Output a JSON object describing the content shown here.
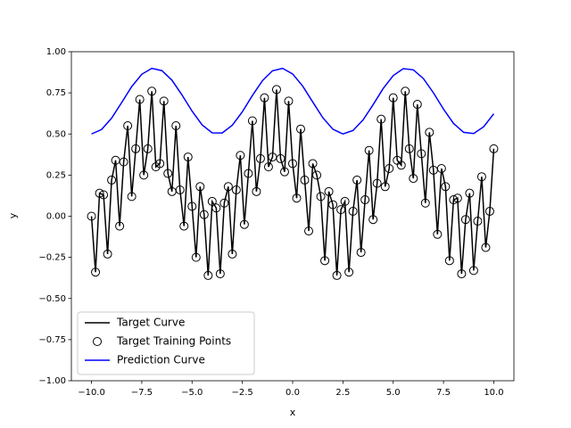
{
  "chart_data": {
    "type": "line",
    "xlabel": "x",
    "ylabel": "y",
    "xlim": [
      -11,
      11
    ],
    "ylim": [
      -1,
      1
    ],
    "xticks": [
      {
        "value": -10,
        "label": "−10.0"
      },
      {
        "value": -7.5,
        "label": "−7.5"
      },
      {
        "value": -5,
        "label": "−5.0"
      },
      {
        "value": -2.5,
        "label": "−2.5"
      },
      {
        "value": 0,
        "label": "0.0"
      },
      {
        "value": 2.5,
        "label": "2.5"
      },
      {
        "value": 5,
        "label": "5.0"
      },
      {
        "value": 7.5,
        "label": "7.5"
      },
      {
        "value": 10,
        "label": "10.0"
      }
    ],
    "yticks": [
      {
        "value": -1,
        "label": "−1.00"
      },
      {
        "value": -0.75,
        "label": "−0.75"
      },
      {
        "value": -0.5,
        "label": "−0.50"
      },
      {
        "value": -0.25,
        "label": "−0.25"
      },
      {
        "value": 0,
        "label": "0.00"
      },
      {
        "value": 0.25,
        "label": "0.25"
      },
      {
        "value": 0.5,
        "label": "0.50"
      },
      {
        "value": 0.75,
        "label": "0.75"
      },
      {
        "value": 1,
        "label": "1.00"
      }
    ],
    "legend": "lower left",
    "series": [
      {
        "name": "Target Curve",
        "color": "#000000",
        "style": "line",
        "x": [
          -10,
          -9.8,
          -9.6,
          -9.4,
          -9.2,
          -9,
          -8.8,
          -8.6,
          -8.4,
          -8.2,
          -8,
          -7.8,
          -7.6,
          -7.4,
          -7.2,
          -7,
          -6.8,
          -6.6,
          -6.4,
          -6.2,
          -6,
          -5.8,
          -5.6,
          -5.4,
          -5.2,
          -5,
          -4.8,
          -4.6,
          -4.4,
          -4.2,
          -4,
          -3.8,
          -3.6,
          -3.4,
          -3.2,
          -3,
          -2.8,
          -2.6,
          -2.4,
          -2.2,
          -2,
          -1.8,
          -1.6,
          -1.4,
          -1.2,
          -1,
          -0.8,
          -0.6,
          -0.4,
          -0.2,
          0,
          0.2,
          0.4,
          0.6,
          0.8,
          1,
          1.2,
          1.4,
          1.6,
          1.8,
          2,
          2.2,
          2.4,
          2.6,
          2.8,
          3,
          3.2,
          3.4,
          3.6,
          3.8,
          4,
          4.2,
          4.4,
          4.6,
          4.8,
          5,
          5.2,
          5.4,
          5.6,
          5.8,
          6,
          6.2,
          6.4,
          6.6,
          6.8,
          7,
          7.2,
          7.4,
          7.6,
          7.8,
          8,
          8.2,
          8.4,
          8.6,
          8.8,
          9,
          9.2,
          9.4,
          9.6,
          9.8,
          10
        ],
        "values": [
          0,
          -0.34,
          0.14,
          0.13,
          -0.23,
          0.22,
          0.34,
          -0.06,
          0.33,
          0.55,
          0.12,
          0.41,
          0.71,
          0.25,
          0.41,
          0.76,
          0.3,
          0.32,
          0.7,
          0.26,
          0.15,
          0.55,
          0.16,
          -0.06,
          0.36,
          0.06,
          -0.25,
          0.18,
          0.01,
          -0.36,
          0.09,
          0.05,
          -0.35,
          0.08,
          0.18,
          -0.23,
          0.16,
          0.37,
          -0.05,
          0.26,
          0.58,
          0.15,
          0.35,
          0.72,
          0.3,
          0.36,
          0.77,
          0.35,
          0.27,
          0.7,
          0.32,
          0.11,
          0.53,
          0.22,
          -0.09,
          0.32,
          0.25,
          0.12,
          -0.27,
          0.15,
          0.07,
          -0.36,
          0.04,
          0.09,
          -0.34,
          0.03,
          0.22,
          -0.22,
          0.1,
          0.4,
          -0.02,
          0.2,
          0.59,
          0.18,
          0.29,
          0.72,
          0.34,
          0.31,
          0.76,
          0.41,
          0.23,
          0.68,
          0.38,
          0.08,
          0.51,
          0.28,
          -0.11,
          0.29,
          0.18,
          -0.27,
          0.1,
          0.11,
          -0.35,
          -0.02,
          0.14,
          -0.33,
          -0.03,
          0.24,
          -0.19,
          0.03,
          0.41
        ]
      },
      {
        "name": "Target Training Points",
        "color": "#000000",
        "style": "marker",
        "x": [
          -10,
          -9.8,
          -9.6,
          -9.4,
          -9.2,
          -9,
          -8.8,
          -8.6,
          -8.4,
          -8.2,
          -8,
          -7.8,
          -7.6,
          -7.4,
          -7.2,
          -7,
          -6.8,
          -6.6,
          -6.4,
          -6.2,
          -6,
          -5.8,
          -5.6,
          -5.4,
          -5.2,
          -5,
          -4.8,
          -4.6,
          -4.4,
          -4.2,
          -4,
          -3.8,
          -3.6,
          -3.4,
          -3.2,
          -3,
          -2.8,
          -2.6,
          -2.4,
          -2.2,
          -2,
          -1.8,
          -1.6,
          -1.4,
          -1.2,
          -1,
          -0.8,
          -0.6,
          -0.4,
          -0.2,
          0,
          0.2,
          0.4,
          0.6,
          0.8,
          1,
          1.2,
          1.4,
          1.6,
          1.8,
          2,
          2.2,
          2.4,
          2.6,
          2.8,
          3,
          3.2,
          3.4,
          3.6,
          3.8,
          4,
          4.2,
          4.4,
          4.6,
          4.8,
          5,
          5.2,
          5.4,
          5.6,
          5.8,
          6,
          6.2,
          6.4,
          6.6,
          6.8,
          7,
          7.2,
          7.4,
          7.6,
          7.8,
          8,
          8.2,
          8.4,
          8.6,
          8.8,
          9,
          9.2,
          9.4,
          9.6,
          9.8,
          10
        ],
        "values": [
          0,
          -0.34,
          0.14,
          0.13,
          -0.23,
          0.22,
          0.34,
          -0.06,
          0.33,
          0.55,
          0.12,
          0.41,
          0.71,
          0.25,
          0.41,
          0.76,
          0.3,
          0.32,
          0.7,
          0.26,
          0.15,
          0.55,
          0.16,
          -0.06,
          0.36,
          0.06,
          -0.25,
          0.18,
          0.01,
          -0.36,
          0.09,
          0.05,
          -0.35,
          0.08,
          0.18,
          -0.23,
          0.16,
          0.37,
          -0.05,
          0.26,
          0.58,
          0.15,
          0.35,
          0.72,
          0.3,
          0.36,
          0.77,
          0.35,
          0.27,
          0.7,
          0.32,
          0.11,
          0.53,
          0.22,
          -0.09,
          0.32,
          0.25,
          0.12,
          -0.27,
          0.15,
          0.07,
          -0.36,
          0.04,
          0.09,
          -0.34,
          0.03,
          0.22,
          -0.22,
          0.1,
          0.4,
          -0.02,
          0.2,
          0.59,
          0.18,
          0.29,
          0.72,
          0.34,
          0.31,
          0.76,
          0.41,
          0.23,
          0.68,
          0.38,
          0.08,
          0.51,
          0.28,
          -0.11,
          0.29,
          0.18,
          -0.27,
          0.1,
          0.11,
          -0.35,
          -0.02,
          0.14,
          -0.33,
          -0.03,
          0.24,
          -0.19,
          0.03,
          0.41
        ]
      },
      {
        "name": "Prediction Curve",
        "color": "#0000ff",
        "style": "line",
        "x": [
          -10,
          -9.5,
          -9,
          -8.5,
          -8,
          -7.5,
          -7,
          -6.5,
          -6,
          -5.5,
          -5,
          -4.5,
          -4,
          -3.5,
          -3,
          -2.5,
          -2,
          -1.5,
          -1,
          -0.5,
          0,
          0.5,
          1,
          1.5,
          2,
          2.5,
          3,
          3.5,
          4,
          4.5,
          5,
          5.5,
          6,
          6.5,
          7,
          7.5,
          8,
          8.5,
          9,
          9.5,
          10
        ],
        "values": [
          0.5,
          0.527,
          0.596,
          0.691,
          0.788,
          0.863,
          0.899,
          0.885,
          0.827,
          0.737,
          0.639,
          0.555,
          0.507,
          0.506,
          0.553,
          0.635,
          0.734,
          0.824,
          0.884,
          0.899,
          0.865,
          0.791,
          0.694,
          0.599,
          0.529,
          0.5,
          0.521,
          0.585,
          0.678,
          0.776,
          0.855,
          0.897,
          0.89,
          0.837,
          0.75,
          0.651,
          0.564,
          0.51,
          0.503,
          0.544,
          0.623
        ]
      }
    ]
  }
}
